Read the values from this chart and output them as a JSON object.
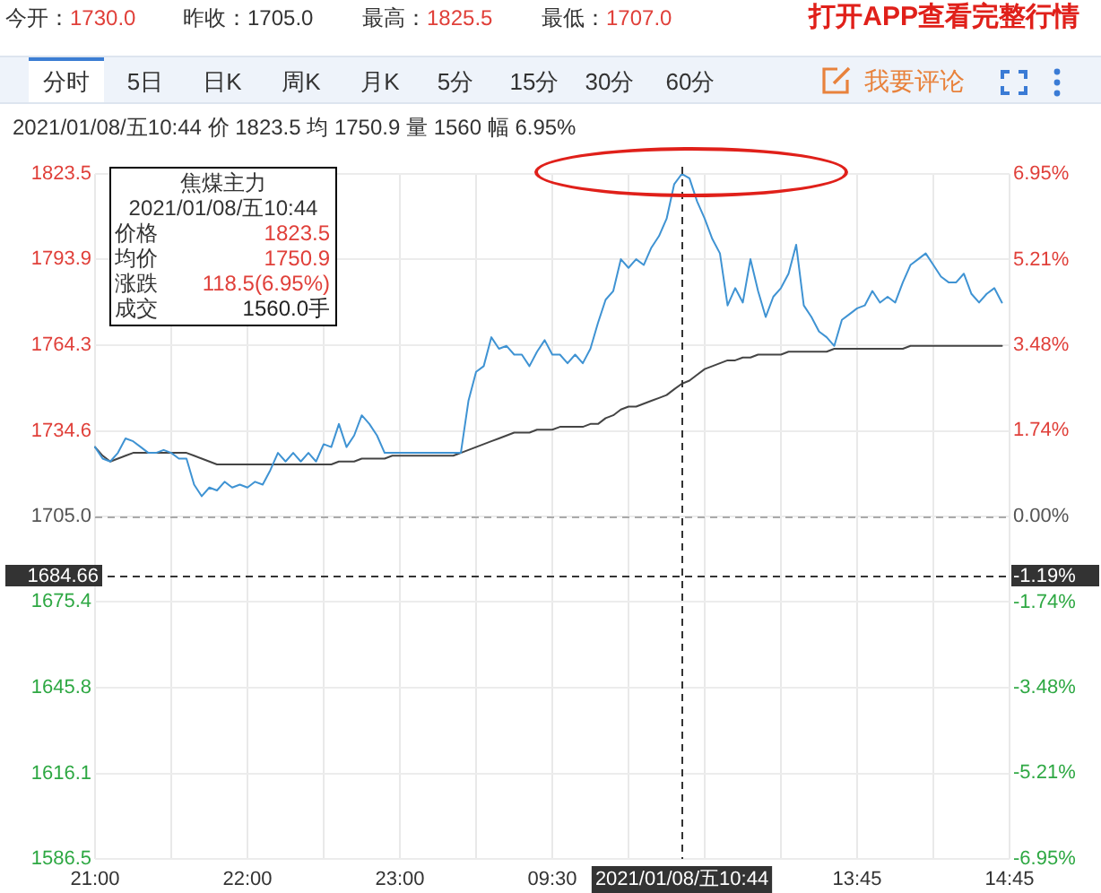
{
  "chart_data": {
    "type": "line",
    "subtitle": "2021/01/08/五10:44 价 1823.5 均 1750.9 量 1560 幅 6.95%",
    "categories": [
      "21:00",
      null,
      null,
      null,
      null,
      null,
      null,
      null,
      null,
      null,
      null,
      null,
      null,
      null,
      null,
      null,
      null,
      null,
      null,
      null,
      "22:00",
      null,
      null,
      null,
      null,
      null,
      null,
      null,
      null,
      null,
      null,
      null,
      null,
      null,
      null,
      null,
      null,
      null,
      null,
      null,
      "23:00",
      null,
      null,
      null,
      null,
      null,
      null,
      null,
      null,
      null,
      null,
      null,
      null,
      null,
      null,
      null,
      null,
      null,
      null,
      null,
      "09:30",
      null,
      null,
      null,
      null,
      null,
      null,
      null,
      null,
      null,
      null,
      null,
      null,
      null,
      null,
      null,
      null,
      "2021/01/08/五10:44",
      null,
      null,
      null,
      null,
      null,
      null,
      null,
      null,
      null,
      null,
      null,
      null,
      null,
      null,
      null,
      null,
      null,
      null,
      null,
      null,
      null,
      null,
      "13:45",
      null,
      null,
      null,
      null,
      null,
      null,
      null,
      null,
      null,
      null,
      null,
      null,
      null,
      null,
      null,
      null,
      null,
      null,
      null,
      "14:45"
    ],
    "series": [
      {
        "color": "#3f93d3",
        "values": [
          1729,
          1725,
          1724,
          1727,
          1732,
          1731,
          1729,
          1727,
          1727,
          1728,
          1727,
          1725,
          1725,
          1716,
          1712,
          1715,
          1714,
          1717,
          1715,
          1716,
          1715,
          1717,
          1716,
          1721,
          1727,
          1724,
          1727,
          1724,
          1727,
          1724,
          1730,
          1729,
          1737,
          1729,
          1733,
          1740,
          1737,
          1733,
          1727,
          1727,
          1727,
          1727,
          1727,
          1727,
          1727,
          1727,
          1727,
          1727,
          1727,
          1745,
          1755,
          1757,
          1767,
          1763,
          1764,
          1761,
          1761,
          1757,
          1762,
          1766,
          1761,
          1761,
          1758,
          1761,
          1758,
          1763,
          1772,
          1780,
          1783,
          1794,
          1791,
          1794,
          1792,
          1798,
          1802,
          1808,
          1820,
          1823.5,
          1822,
          1814,
          1808,
          1801,
          1796,
          1778,
          1784,
          1779,
          1794,
          1783,
          1774,
          1781,
          1784,
          1789,
          1799,
          1778,
          1774,
          1769,
          1767,
          1764,
          1773,
          1775,
          1777,
          1778,
          1783,
          1779,
          1781,
          1779,
          1786,
          1792,
          1794,
          1796,
          1792,
          1788,
          1786,
          1786,
          1789,
          1782,
          1779,
          1782,
          1784,
          1779,
          null
        ]
      },
      {
        "color": "#444444",
        "values": [
          1729,
          1726,
          1724,
          1725,
          1726,
          1727,
          1727,
          1727,
          1727,
          1727,
          1727,
          1727,
          1727,
          1726,
          1725,
          1724,
          1723,
          1723,
          1723,
          1723,
          1723,
          1723,
          1723,
          1723,
          1723,
          1723,
          1723,
          1723,
          1723,
          1723,
          1723,
          1723,
          1724,
          1724,
          1724,
          1725,
          1725,
          1725,
          1725,
          1726,
          1726,
          1726,
          1726,
          1726,
          1726,
          1726,
          1726,
          1726,
          1727,
          1728,
          1729,
          1730,
          1731,
          1732,
          1733,
          1734,
          1734,
          1734,
          1735,
          1735,
          1735,
          1736,
          1736,
          1736,
          1736,
          1737,
          1737,
          1739,
          1740,
          1742,
          1743,
          1743,
          1744,
          1745,
          1746,
          1747,
          1749,
          1750.9,
          1752,
          1754,
          1756,
          1757,
          1758,
          1759,
          1759,
          1760,
          1760,
          1761,
          1761,
          1761,
          1761,
          1762,
          1762,
          1762,
          1762,
          1762,
          1762,
          1763,
          1763,
          1763,
          1763,
          1763,
          1763,
          1763,
          1763,
          1763,
          1763,
          1764,
          1764,
          1764,
          1764,
          1764,
          1764,
          1764,
          1764,
          1764,
          1764,
          1764,
          1764,
          1764,
          null
        ]
      }
    ],
    "ylim": [
      1586.5,
      1823.5
    ],
    "yticks": [
      1823.5,
      1793.9,
      1764.3,
      1734.6,
      {
        "value": 1705,
        "label": "1705.0"
      },
      1675.4,
      1645.8,
      1616.1,
      1586.5
    ],
    "y2lim": [
      -6.95,
      6.95
    ],
    "y2ticks": [
      {
        "value": 6.95,
        "label": "6.95%"
      },
      {
        "value": 5.21,
        "label": "5.21%"
      },
      {
        "value": 3.48,
        "label": "3.48%"
      },
      {
        "value": 1.74,
        "label": "1.74%"
      },
      {
        "value": 0,
        "label": "0.00%"
      },
      {
        "value": -1.74,
        "label": "-1.74%"
      },
      {
        "value": -3.48,
        "label": "-3.48%"
      },
      {
        "value": -5.21,
        "label": "-5.21%"
      },
      {
        "value": -6.95,
        "label": "-6.95%"
      }
    ],
    "ref_lines": [
      {
        "axis": "y",
        "value": 1705,
        "color": "#aaaaaa",
        "line_style": "dashed"
      },
      {
        "axis": "y",
        "value": 1684.66,
        "label": "1684.66",
        "color": "#333333",
        "line_style": "dashed"
      },
      {
        "axis": "x",
        "value": "2021/01/08/五10:44",
        "color": "#333333",
        "line_style": "dashed"
      }
    ],
    "grid": true,
    "annotations": [
      "今开：",
      "1730.0",
      "昨收：",
      "1705.0",
      "最高：",
      "1825.5",
      "最低：",
      "1707.0",
      "打开APP查看完整行情",
      "分时",
      "5日",
      "日K",
      "周K",
      "月K",
      "5分",
      "15分",
      "30分",
      "60分",
      "我要评论",
      "焦煤主力",
      "2021/01/08/五10:44",
      "价格",
      "1823.5",
      "均价",
      "1750.9",
      "涨跌",
      "118.5(6.95%)",
      "成交",
      "1560.0手",
      "-1.19%"
    ]
  }
}
